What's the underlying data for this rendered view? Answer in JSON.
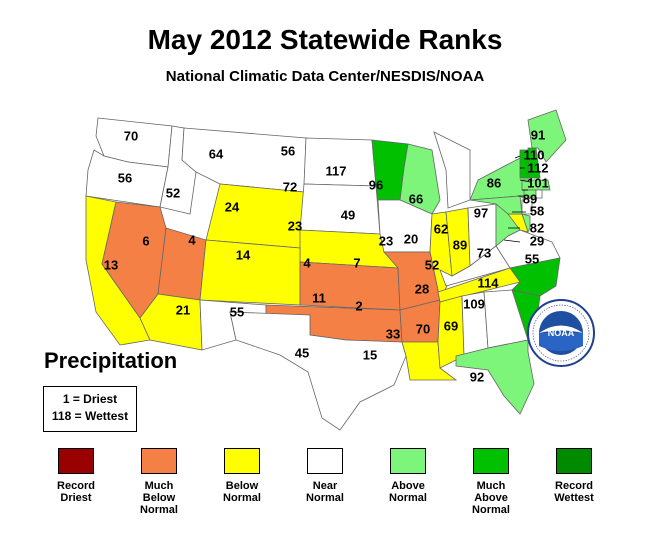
{
  "title": "May 2012 Statewide Ranks",
  "subtitle": "National Climatic Data Center/NESDIS/NOAA",
  "precipitation_label": "Precipitation",
  "key": {
    "line1": "1 = Driest",
    "line2": "118 = Wettest"
  },
  "logo": {
    "text": "NOAA",
    "ring_text": "NATIONAL OCEANIC AND ATMOSPHERIC ADMINISTRATION · U.S. DEPARTMENT OF COMMERCE"
  },
  "legend": [
    {
      "label": "Record\nDriest",
      "color": "#990000"
    },
    {
      "label": "Much\nBelow\nNormal",
      "color": "#f58045"
    },
    {
      "label": "Below\nNormal",
      "color": "#ffff00"
    },
    {
      "label": "Near\nNormal",
      "color": "#ffffff"
    },
    {
      "label": "Above\nNormal",
      "color": "#7cf57a"
    },
    {
      "label": "Much\nAbove\nNormal",
      "color": "#00c000"
    },
    {
      "label": "Record\nWettest",
      "color": "#008a00"
    }
  ],
  "states": [
    {
      "id": "WA",
      "rank": "70",
      "category": "Near Normal"
    },
    {
      "id": "OR",
      "rank": "56",
      "category": "Near Normal"
    },
    {
      "id": "ID",
      "rank": "52",
      "category": "Near Normal"
    },
    {
      "id": "MT",
      "rank": "64",
      "category": "Near Normal"
    },
    {
      "id": "ND",
      "rank": "56",
      "category": "Near Normal"
    },
    {
      "id": "MN",
      "rank": "117",
      "category": "Much Above Normal"
    },
    {
      "id": "WI",
      "rank": "96",
      "category": "Above Normal"
    },
    {
      "id": "MI",
      "rank": "66",
      "category": "Near Normal"
    },
    {
      "id": "NY",
      "rank": "86",
      "category": "Above Normal"
    },
    {
      "id": "ME",
      "rank": "91",
      "category": "Above Normal"
    },
    {
      "id": "VT",
      "rank": "110",
      "category": "Much Above Normal"
    },
    {
      "id": "NH",
      "rank": "112",
      "category": "Much Above Normal"
    },
    {
      "id": "MA",
      "rank": "101",
      "category": "Above Normal"
    },
    {
      "id": "CT",
      "rank": "89",
      "category": "Above Normal"
    },
    {
      "id": "NJ",
      "rank": "58",
      "category": "Near Normal"
    },
    {
      "id": "DE",
      "rank": "82",
      "category": "Above Normal"
    },
    {
      "id": "MD",
      "rank": "29",
      "category": "Below Normal"
    },
    {
      "id": "VA",
      "rank": "73",
      "category": "Near Normal"
    },
    {
      "id": "NC",
      "rank": "114",
      "category": "Much Above Normal"
    },
    {
      "id": "SC",
      "rank": "109",
      "category": "Much Above Normal"
    },
    {
      "id": "CA",
      "rank": "13",
      "category": "Below Normal"
    },
    {
      "id": "NV",
      "rank": "6",
      "category": "Much Below Normal"
    },
    {
      "id": "UT",
      "rank": "4",
      "category": "Much Below Normal"
    },
    {
      "id": "WY",
      "rank": "24",
      "category": "Below Normal"
    },
    {
      "id": "SD",
      "rank": "72",
      "category": "Near Normal"
    },
    {
      "id": "NE",
      "rank": "23",
      "category": "Below Normal"
    },
    {
      "id": "IA",
      "rank": "49",
      "category": "Near Normal"
    },
    {
      "id": "IL",
      "rank": "23",
      "category": "Below Normal"
    },
    {
      "id": "IN",
      "rank": "20",
      "category": "Below Normal"
    },
    {
      "id": "OH",
      "rank": "62",
      "category": "Near Normal"
    },
    {
      "id": "PA",
      "rank": "97",
      "category": "Above Normal"
    },
    {
      "id": "WV",
      "rank": "89",
      "category": "Above Normal"
    },
    {
      "id": "KY",
      "rank": "52",
      "category": "Near Normal"
    },
    {
      "id": "CO",
      "rank": "14",
      "category": "Below Normal"
    },
    {
      "id": "KS",
      "rank": "4",
      "category": "Much Below Normal"
    },
    {
      "id": "MO",
      "rank": "7",
      "category": "Much Below Normal"
    },
    {
      "id": "AZ",
      "rank": "21",
      "category": "Below Normal"
    },
    {
      "id": "NM",
      "rank": "55",
      "category": "Near Normal"
    },
    {
      "id": "OK",
      "rank": "11",
      "category": "Much Below Normal"
    },
    {
      "id": "AR",
      "rank": "2",
      "category": "Much Below Normal"
    },
    {
      "id": "TN",
      "rank": "28",
      "category": "Below Normal"
    },
    {
      "id": "TX",
      "rank": "45",
      "category": "Near Normal"
    },
    {
      "id": "LA",
      "rank": "15",
      "category": "Below Normal"
    },
    {
      "id": "MS",
      "rank": "33",
      "category": "Below Normal"
    },
    {
      "id": "AL",
      "rank": "70",
      "category": "Near Normal"
    },
    {
      "id": "GA",
      "rank": "69",
      "category": "Near Normal"
    },
    {
      "id": "FL",
      "rank": "92",
      "category": "Above Normal"
    },
    {
      "id": "RI",
      "rank": "55",
      "category": "Near Normal"
    }
  ]
}
